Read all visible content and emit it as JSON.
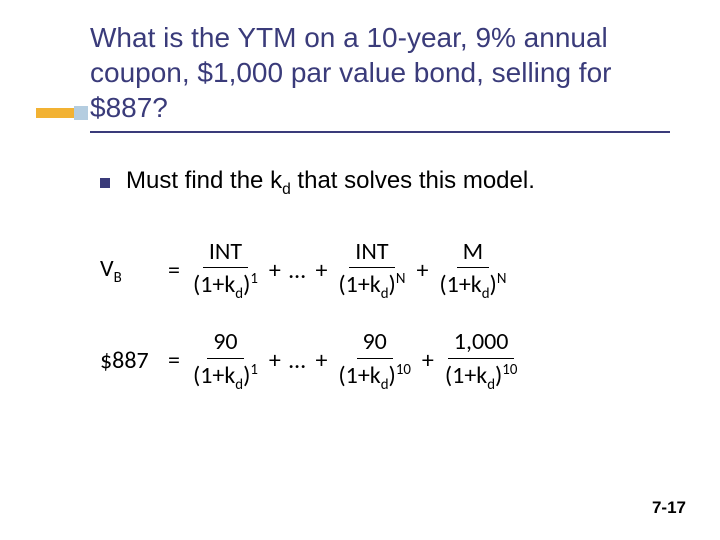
{
  "colors": {
    "title_color": "#3a3b7a",
    "underline_color": "#3a3b7a",
    "accent_bar_color": "#f2b233",
    "accent_square_color": "#b4cde0",
    "bullet_color": "#3a3b7a",
    "background": "#ffffff"
  },
  "typography": {
    "title_fontsize": 28,
    "body_fontsize": 24,
    "formula_fontsize": 24,
    "page_num_fontsize": 17
  },
  "title": "What is the YTM on a 10-year, 9% annual coupon, $1,000 par value bond, selling for $887?",
  "bullet": {
    "prefix": "Must find the k",
    "sub": "d",
    "suffix": " that solves this model."
  },
  "eq1": {
    "lhs_var": "V",
    "lhs_sub": "B",
    "t1_num": "INT",
    "t1_den_base": "(1+k",
    "t1_den_sub": "d",
    "t1_den_close": ")",
    "t1_exp": "1",
    "dots": "…",
    "t2_num": "INT",
    "t2_exp": "N",
    "t3_num": "M",
    "t3_exp": "N"
  },
  "eq2": {
    "lhs": "$887",
    "t1_num": "90",
    "t1_exp": "1",
    "t2_num": "90",
    "t2_exp": "10",
    "t3_num": "1,000",
    "t3_exp": "10",
    "den_sub": "d"
  },
  "page_number": "7-17"
}
